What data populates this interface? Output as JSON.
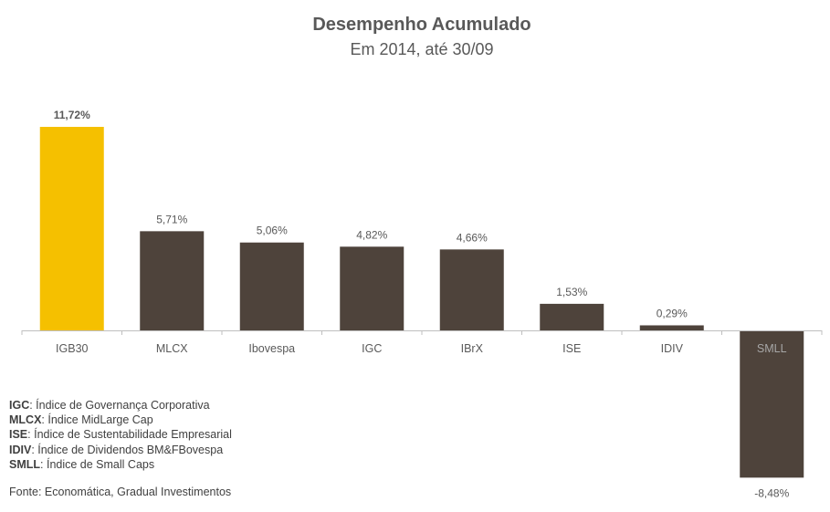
{
  "chart_data": {
    "type": "bar",
    "title": "Desempenho Acumulado",
    "subtitle": "Em 2014, até 30/09",
    "categories": [
      "IGB30",
      "MLCX",
      "Ibovespa",
      "IGC",
      "IBrX",
      "ISE",
      "IDIV",
      "SMLL"
    ],
    "values": [
      11.72,
      5.71,
      5.06,
      4.82,
      4.66,
      1.53,
      0.29,
      -8.48
    ],
    "data_labels": [
      "11,72%",
      "5,71%",
      "5,06%",
      "4,82%",
      "4,66%",
      "1,53%",
      "0,29%",
      "-8,48%"
    ],
    "unit": "%",
    "highlight_category": "IGB30",
    "colors": {
      "highlight": "#F5C000",
      "default": "#4E433B",
      "axis": "#BFBFBF"
    },
    "xlabel": "",
    "ylabel": "",
    "ylim": [
      -8.48,
      11.72
    ],
    "grid": false,
    "legend": "none"
  },
  "notes": [
    {
      "abbr": "IGC",
      "text": ": Índice de Governança Corporativa"
    },
    {
      "abbr": "MLCX",
      "text": ": Índice MidLarge Cap"
    },
    {
      "abbr": "ISE",
      "text": ": Índice de Sustentabilidade Empresarial"
    },
    {
      "abbr": "IDIV",
      "text": ": Índice de Dividendos BM&FBovespa"
    },
    {
      "abbr": "SMLL",
      "text": ": Índice de Small Caps"
    }
  ],
  "source": "Fonte: Economática, Gradual Investimentos"
}
